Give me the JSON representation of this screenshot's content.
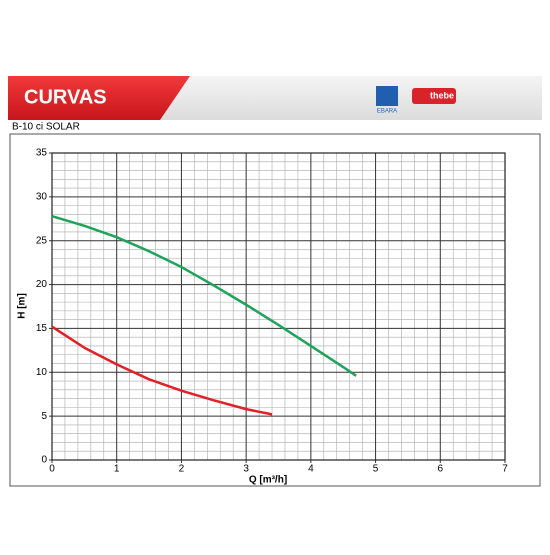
{
  "header": {
    "title": "CURVAS",
    "logo_left": "EBARA",
    "logo_right": "thebe"
  },
  "chart_data": {
    "type": "line",
    "title": "B-10 ci SOLAR",
    "x_label": "Q [m³/h]",
    "y_label": "H [m]",
    "series": [
      {
        "color": "#1fa35a",
        "x": [
          0,
          0.5,
          1,
          1.5,
          2,
          2.5,
          3,
          3.5,
          4,
          4.5,
          4.7
        ],
        "values": [
          27.8,
          26.7,
          25.4,
          23.8,
          22.0,
          19.9,
          17.7,
          15.4,
          13.0,
          10.6,
          9.6
        ]
      },
      {
        "color": "#e2202a",
        "x": [
          0,
          0.5,
          1,
          1.5,
          2,
          2.5,
          3,
          3.4
        ],
        "values": [
          15.2,
          12.8,
          10.9,
          9.2,
          7.9,
          6.8,
          5.8,
          5.2
        ]
      }
    ],
    "xlim": [
      0,
      7
    ],
    "ylim": [
      0,
      35
    ],
    "xticks": [
      0,
      1,
      2,
      3,
      4,
      5,
      6,
      7
    ],
    "yticks": [
      0,
      5,
      10,
      15,
      20,
      25,
      30,
      35
    ],
    "grid": true
  }
}
